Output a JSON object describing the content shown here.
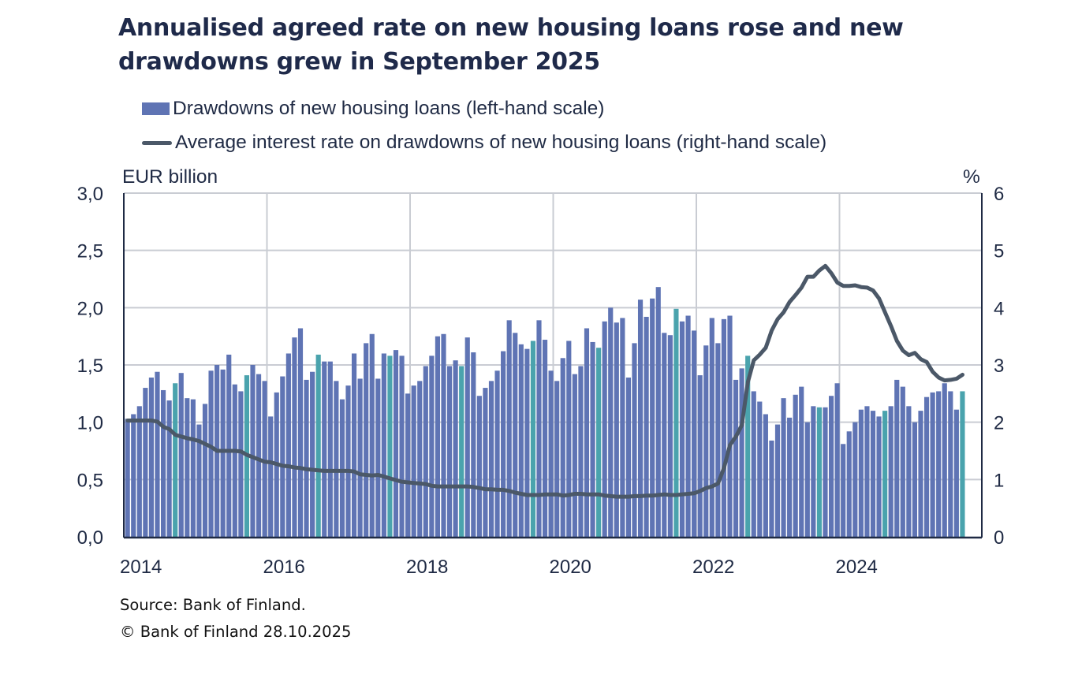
{
  "chart_data": {
    "type": "bar+line",
    "title": "Annualised agreed rate on new housing loans rose and new drawdowns grew in September 2025",
    "left_axis_label": "EUR billion",
    "right_axis_label": "%",
    "left_ylim": [
      0,
      3
    ],
    "right_ylim": [
      0,
      6
    ],
    "left_ticks": [
      "0,0",
      "0,5",
      "1,0",
      "1,5",
      "2,0",
      "2,5",
      "3,0"
    ],
    "right_ticks": [
      "0",
      "1",
      "2",
      "3",
      "4",
      "5",
      "6"
    ],
    "x_ticks": [
      "2014",
      "2016",
      "2018",
      "2020",
      "2022",
      "2024"
    ],
    "x_range": [
      "2014-01",
      "2025-12"
    ],
    "grid": true,
    "legend_position": "top",
    "colors": {
      "bars": "#5f74b4",
      "highlight_bars": "#4aa3ad",
      "line": "#4b5868",
      "text": "#1f2a44",
      "grid": "#c9ccd3"
    },
    "series": [
      {
        "name": "Drawdowns of new housing loans (left-hand scale)",
        "type": "bar",
        "axis": "left",
        "values": [
          1.03,
          1.07,
          1.14,
          1.3,
          1.39,
          1.44,
          1.28,
          1.19,
          1.34,
          1.43,
          1.21,
          1.2,
          0.98,
          1.16,
          1.45,
          1.5,
          1.46,
          1.59,
          1.33,
          1.27,
          1.41,
          1.5,
          1.42,
          1.36,
          1.05,
          1.26,
          1.4,
          1.6,
          1.74,
          1.82,
          1.37,
          1.44,
          1.59,
          1.53,
          1.53,
          1.36,
          1.2,
          1.32,
          1.6,
          1.38,
          1.69,
          1.77,
          1.38,
          1.6,
          1.58,
          1.63,
          1.58,
          1.25,
          1.32,
          1.36,
          1.49,
          1.58,
          1.75,
          1.77,
          1.49,
          1.54,
          1.49,
          1.74,
          1.61,
          1.23,
          1.3,
          1.36,
          1.45,
          1.62,
          1.89,
          1.78,
          1.68,
          1.64,
          1.71,
          1.89,
          1.72,
          1.45,
          1.36,
          1.56,
          1.71,
          1.42,
          1.49,
          1.82,
          1.7,
          1.65,
          1.88,
          2.0,
          1.87,
          1.91,
          1.39,
          1.69,
          2.07,
          1.92,
          2.08,
          2.18,
          1.78,
          1.76,
          1.99,
          1.88,
          1.93,
          1.8,
          1.41,
          1.67,
          1.91,
          1.69,
          1.9,
          1.93,
          1.37,
          1.47,
          1.58,
          1.27,
          1.18,
          1.07,
          0.84,
          0.98,
          1.21,
          1.04,
          1.24,
          1.31,
          1.0,
          1.14,
          1.13,
          1.13,
          1.23,
          1.34,
          0.81,
          0.92,
          1.0,
          1.11,
          1.14,
          1.1,
          1.05,
          1.1,
          1.14,
          1.37,
          1.31,
          1.14,
          1.0,
          1.1,
          1.22,
          1.26,
          1.27,
          1.34,
          1.27,
          1.11,
          1.27
        ],
        "highlighted_indices": [
          8,
          20,
          32,
          44,
          56,
          68,
          79,
          92,
          104,
          116,
          127,
          140
        ]
      },
      {
        "name": "Average interest rate on drawdowns of new housing loans (right-hand scale)",
        "type": "line",
        "axis": "right",
        "values": [
          2.03,
          2.03,
          2.03,
          2.03,
          2.03,
          2.01,
          1.92,
          1.88,
          1.78,
          1.75,
          1.72,
          1.7,
          1.67,
          1.62,
          1.57,
          1.5,
          1.5,
          1.5,
          1.5,
          1.49,
          1.43,
          1.39,
          1.35,
          1.31,
          1.3,
          1.27,
          1.24,
          1.23,
          1.21,
          1.2,
          1.18,
          1.17,
          1.16,
          1.15,
          1.15,
          1.15,
          1.15,
          1.15,
          1.14,
          1.09,
          1.08,
          1.07,
          1.08,
          1.05,
          1.02,
          0.99,
          0.96,
          0.95,
          0.94,
          0.93,
          0.92,
          0.89,
          0.88,
          0.88,
          0.88,
          0.88,
          0.88,
          0.88,
          0.87,
          0.85,
          0.83,
          0.83,
          0.82,
          0.82,
          0.8,
          0.77,
          0.75,
          0.73,
          0.73,
          0.73,
          0.74,
          0.74,
          0.74,
          0.72,
          0.73,
          0.75,
          0.75,
          0.74,
          0.74,
          0.74,
          0.72,
          0.71,
          0.7,
          0.7,
          0.7,
          0.71,
          0.71,
          0.72,
          0.72,
          0.73,
          0.74,
          0.73,
          0.73,
          0.74,
          0.75,
          0.76,
          0.8,
          0.85,
          0.88,
          0.93,
          1.2,
          1.6,
          1.75,
          1.95,
          2.7,
          3.08,
          3.18,
          3.3,
          3.6,
          3.8,
          3.92,
          4.1,
          4.22,
          4.35,
          4.54,
          4.54,
          4.65,
          4.73,
          4.6,
          4.44,
          4.38,
          4.38,
          4.39,
          4.36,
          4.35,
          4.3,
          4.16,
          3.92,
          3.68,
          3.42,
          3.25,
          3.17,
          3.21,
          3.1,
          3.05,
          2.88,
          2.78,
          2.73,
          2.74,
          2.76,
          2.83
        ]
      }
    ]
  },
  "footer": {
    "source": "Source: Bank of Finland.",
    "copyright": "© Bank of Finland 28.10.2025"
  }
}
